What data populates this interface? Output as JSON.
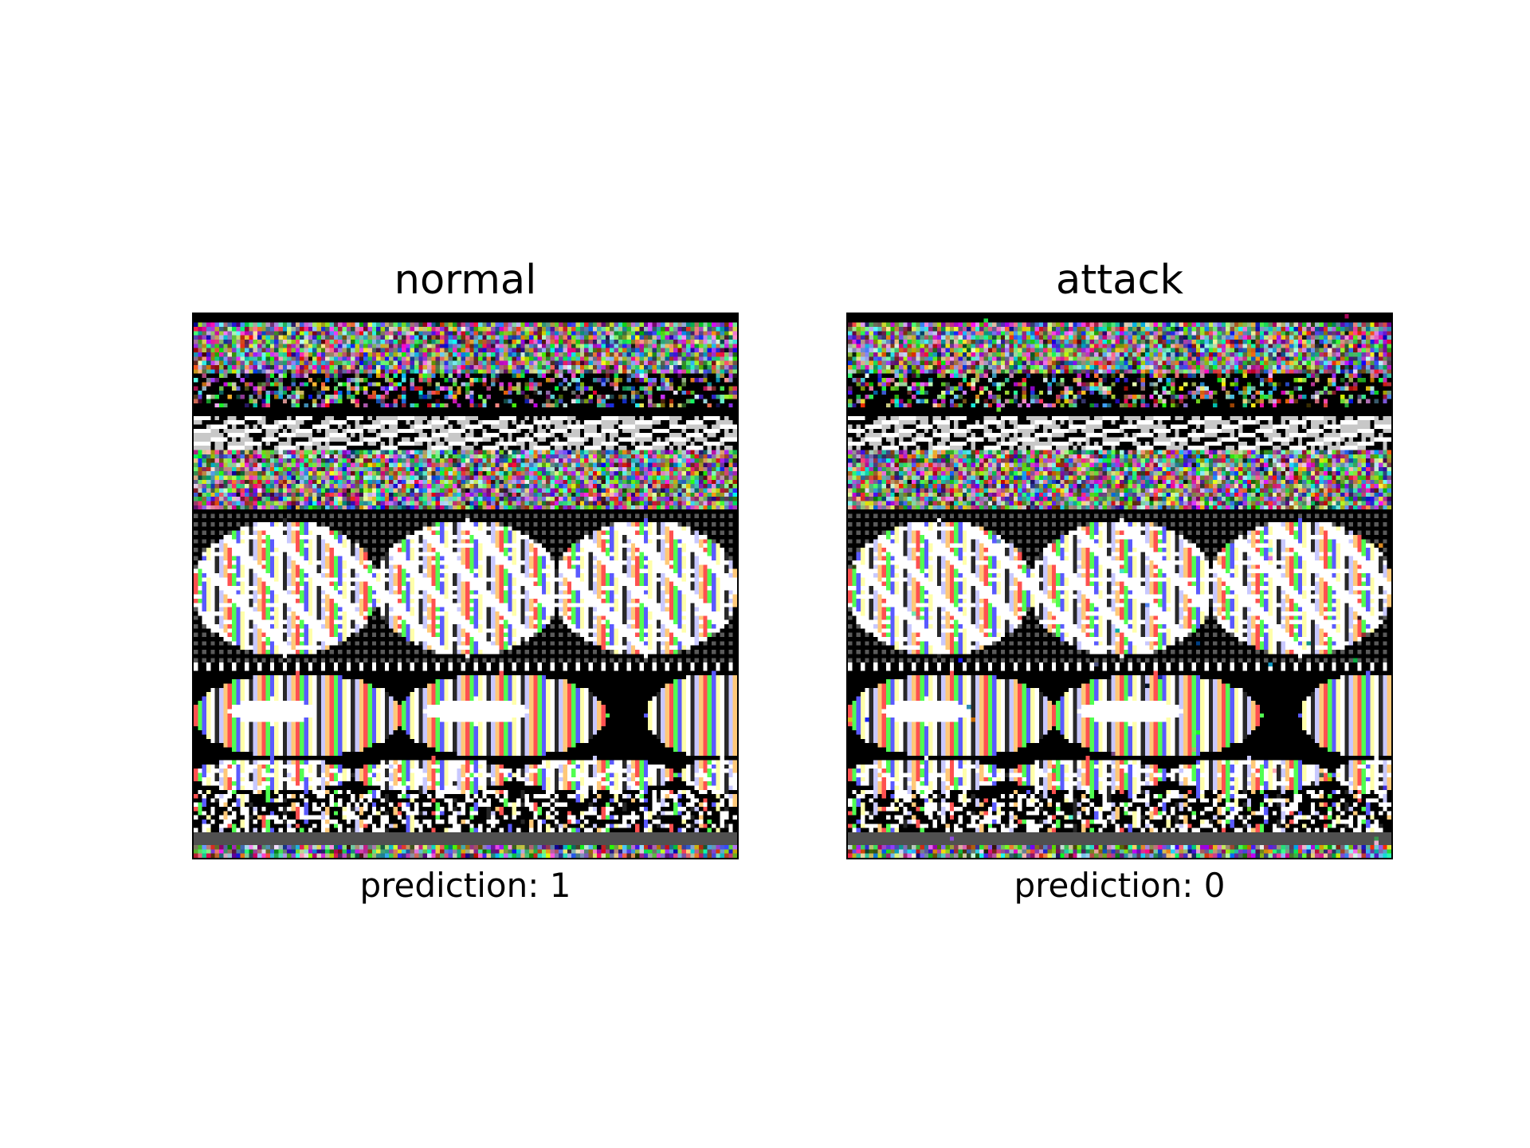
{
  "panels": [
    {
      "title": "normal",
      "caption": "prediction: 1"
    },
    {
      "title": "attack",
      "caption": "prediction: 0"
    }
  ],
  "colors": {
    "background": "#ffffff",
    "text": "#000000",
    "frame": "#000000"
  }
}
